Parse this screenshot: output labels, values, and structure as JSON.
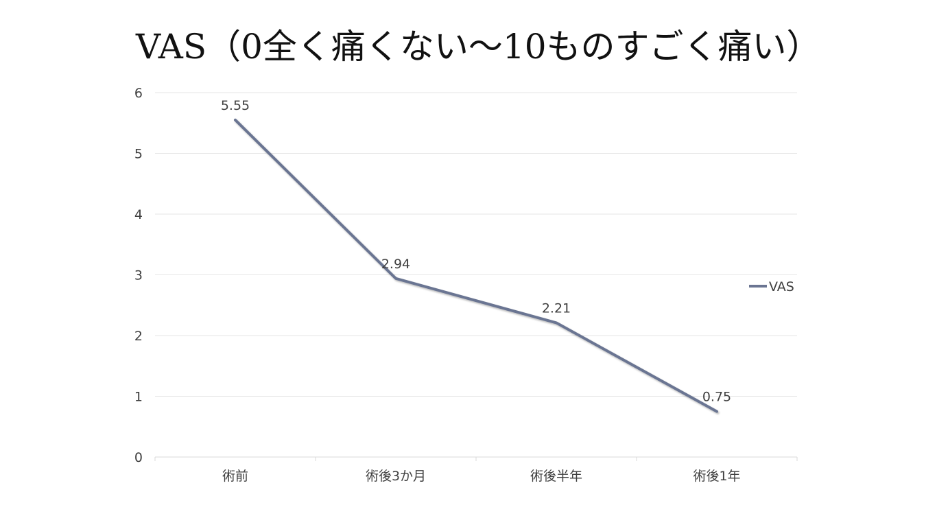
{
  "slide": {
    "title": "VAS（0全く痛くない～10ものすごく痛い）"
  },
  "chart_data": {
    "type": "line",
    "title": "",
    "xlabel": "",
    "ylabel": "",
    "categories": [
      "術前",
      "術後3か月",
      "術後半年",
      "術後1年"
    ],
    "series": [
      {
        "name": "VAS",
        "values": [
          5.55,
          2.94,
          2.21,
          0.75
        ],
        "color": "#6b7592"
      }
    ],
    "ylim": [
      0,
      6
    ],
    "yticks": [
      "0",
      "1",
      "2",
      "3",
      "4",
      "5",
      "6"
    ],
    "data_labels": [
      "5.55",
      "2.94",
      "2.21",
      "0.75"
    ],
    "grid": true,
    "legend_position": "right"
  }
}
